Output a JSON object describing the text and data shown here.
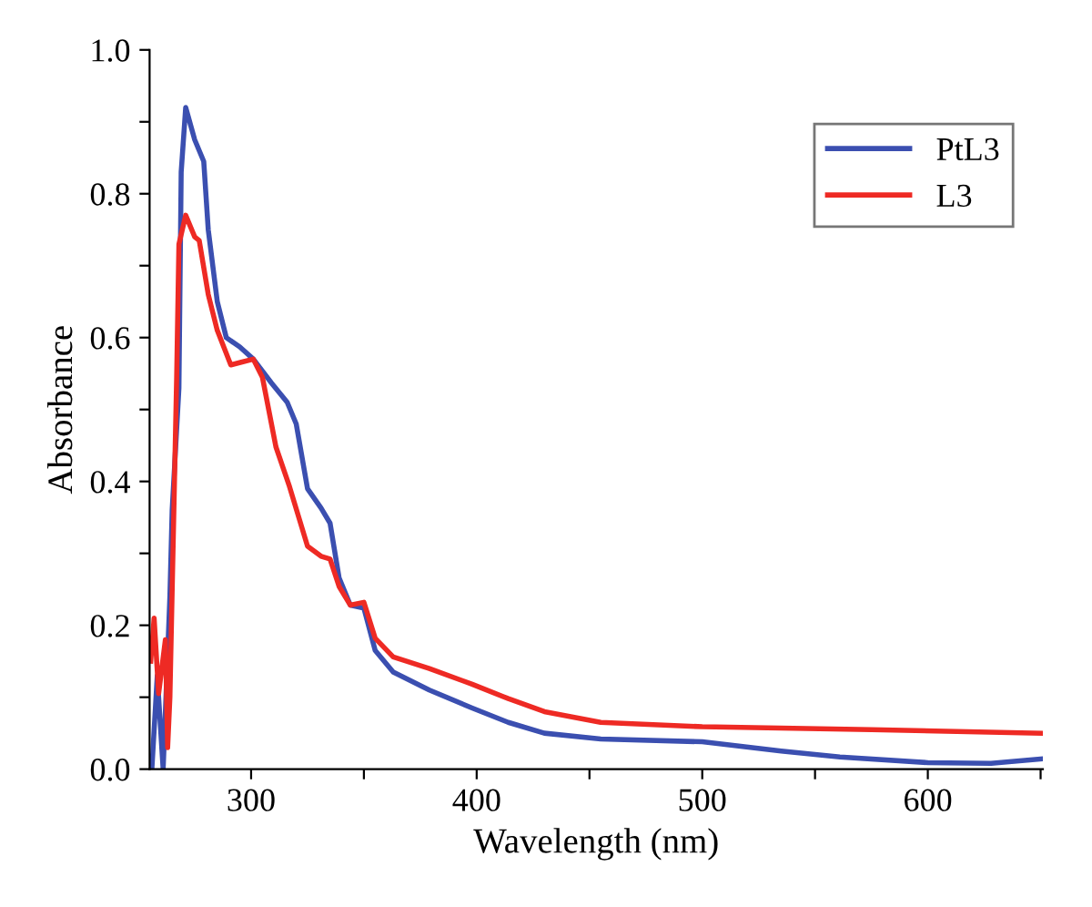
{
  "chart_data": {
    "type": "line",
    "xlabel": "Wavelength (nm)",
    "ylabel": "Absorbance",
    "xlim": [
      255,
      651
    ],
    "ylim": [
      0,
      1.0
    ],
    "xticks": [
      {
        "value": 300,
        "label": "300"
      },
      {
        "value": 350,
        "label": null
      },
      {
        "value": 400,
        "label": "400"
      },
      {
        "value": 450,
        "label": null
      },
      {
        "value": 500,
        "label": "500"
      },
      {
        "value": 550,
        "label": null
      },
      {
        "value": 600,
        "label": "600"
      },
      {
        "value": 650,
        "label": null
      }
    ],
    "yticks": [
      {
        "value": 0,
        "label": "0.0"
      },
      {
        "value": 0.1,
        "label": null
      },
      {
        "value": 0.2,
        "label": "0.2"
      },
      {
        "value": 0.3,
        "label": null
      },
      {
        "value": 0.4,
        "label": "0.4"
      },
      {
        "value": 0.5,
        "label": null
      },
      {
        "value": 0.6,
        "label": "0.6"
      },
      {
        "value": 0.7,
        "label": null
      },
      {
        "value": 0.8,
        "label": "0.8"
      },
      {
        "value": 0.9,
        "label": null
      },
      {
        "value": 1.0,
        "label": "1.0"
      }
    ],
    "grid": false,
    "legend": "top right",
    "marker": "none",
    "line_style": "solid",
    "series": [
      {
        "name": "PtL3",
        "color": "#3b4fb0",
        "x": [
          256,
          258.4,
          261,
          264,
          265,
          268,
          269,
          271,
          275,
          279,
          281,
          285,
          289,
          295,
          301,
          309,
          316,
          320,
          325,
          331,
          335,
          339,
          344,
          350,
          355,
          363,
          379,
          398,
          414,
          430,
          455,
          500,
          535,
          561,
          600,
          628,
          650
        ],
        "values": [
          0,
          0.13,
          0,
          0.24,
          0.36,
          0.53,
          0.83,
          0.92,
          0.875,
          0.845,
          0.75,
          0.65,
          0.6,
          0.587,
          0.57,
          0.537,
          0.51,
          0.48,
          0.39,
          0.363,
          0.342,
          0.266,
          0.228,
          0.224,
          0.165,
          0.135,
          0.11,
          0.085,
          0.065,
          0.05,
          0.042,
          0.038,
          0.025,
          0.017,
          0.009,
          0.008,
          0.014
        ]
      },
      {
        "name": "L3",
        "color": "#ee2a24",
        "x": [
          255.5,
          257,
          259,
          262,
          263,
          264,
          267,
          268,
          271,
          275,
          277,
          281,
          285,
          291,
          296,
          301,
          305,
          311,
          317,
          325,
          331,
          335,
          339,
          344,
          350,
          355,
          363,
          379,
          398,
          414,
          430,
          455,
          500,
          575,
          650
        ],
        "values": [
          0.15,
          0.21,
          0.105,
          0.18,
          0.03,
          0.1,
          0.545,
          0.73,
          0.77,
          0.74,
          0.735,
          0.66,
          0.61,
          0.562,
          0.566,
          0.57,
          0.545,
          0.448,
          0.393,
          0.31,
          0.296,
          0.292,
          0.254,
          0.228,
          0.232,
          0.182,
          0.156,
          0.14,
          0.118,
          0.098,
          0.08,
          0.065,
          0.059,
          0.055,
          0.05
        ]
      }
    ]
  }
}
